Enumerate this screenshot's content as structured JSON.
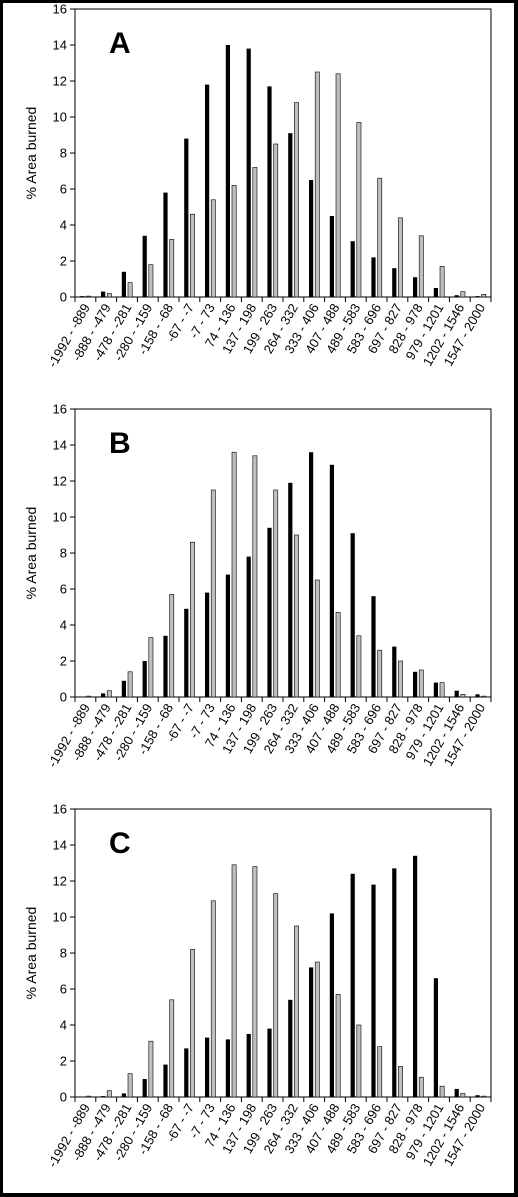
{
  "chart_data": [
    {
      "type": "bar",
      "panel_label": "A",
      "ylabel": "% Area burned",
      "xlabel": "",
      "ylim": [
        0,
        16
      ],
      "yticks": [
        0,
        2,
        4,
        6,
        8,
        10,
        12,
        14,
        16
      ],
      "grid": false,
      "categories": [
        "-1992 - -889",
        "-888 - -479",
        "-478 - -281",
        "-280 - -159",
        "-158 - -68",
        "-67 - -7",
        "-7 - 73",
        "74 - 136",
        "137 - 198",
        "199 - 263",
        "264 - 332",
        "333 - 406",
        "407 - 488",
        "489 - 583",
        "583 - 696",
        "697 - 827",
        "828 - 978",
        "979 - 1201",
        "1202 - 1546",
        "1547 - 2000"
      ],
      "series": [
        {
          "color": "#000000",
          "values": [
            0.05,
            0.3,
            1.4,
            3.4,
            5.8,
            8.8,
            11.8,
            14.0,
            13.8,
            11.7,
            9.1,
            6.5,
            4.5,
            3.1,
            2.2,
            1.6,
            1.1,
            0.5,
            0.1,
            0.05
          ]
        },
        {
          "color": "#bfbfbf",
          "values": [
            0.05,
            0.2,
            0.8,
            1.8,
            3.2,
            4.6,
            5.4,
            6.2,
            7.2,
            8.5,
            10.8,
            12.5,
            12.4,
            9.7,
            6.6,
            4.4,
            3.4,
            1.7,
            0.3,
            0.15
          ]
        }
      ]
    },
    {
      "type": "bar",
      "panel_label": "B",
      "ylabel": "% Area burned",
      "xlabel": "",
      "ylim": [
        0,
        16
      ],
      "yticks": [
        0,
        2,
        4,
        6,
        8,
        10,
        12,
        14,
        16
      ],
      "grid": false,
      "categories": [
        "-1992 - -889",
        "-888 - -479",
        "-478 - -281",
        "-280 - -159",
        "-158 - -68",
        "-67 - -7",
        "-7 - 73",
        "74 - 136",
        "137 - 198",
        "199 - 263",
        "264 - 332",
        "333 - 406",
        "407 - 488",
        "489 - 583",
        "583 - 696",
        "697 - 827",
        "828 - 978",
        "979 - 1201",
        "1202 - 1546",
        "1547 - 2000"
      ],
      "series": [
        {
          "color": "#000000",
          "values": [
            0.02,
            0.2,
            0.9,
            2.0,
            3.4,
            4.9,
            5.8,
            6.8,
            7.8,
            9.4,
            11.9,
            13.6,
            12.9,
            9.1,
            5.6,
            2.8,
            1.4,
            0.8,
            0.35,
            0.15
          ]
        },
        {
          "color": "#bfbfbf",
          "values": [
            0.05,
            0.35,
            1.4,
            3.3,
            5.7,
            8.6,
            11.5,
            13.6,
            13.4,
            11.5,
            9.0,
            6.5,
            4.7,
            3.4,
            2.6,
            2.0,
            1.5,
            0.8,
            0.15,
            0.05
          ]
        }
      ]
    },
    {
      "type": "bar",
      "panel_label": "C",
      "ylabel": "% Area burned",
      "xlabel": "",
      "ylim": [
        0,
        16
      ],
      "yticks": [
        0,
        2,
        4,
        6,
        8,
        10,
        12,
        14,
        16
      ],
      "grid": false,
      "categories": [
        "-1992 - -889",
        "-888 - -479",
        "-478 - -281",
        "-280 - -159",
        "-158 - -68",
        "-67 - -7",
        "-7 - 73",
        "74 - 136",
        "137 - 198",
        "199 - 263",
        "264 - 332",
        "333 - 406",
        "407 - 488",
        "489 - 583",
        "583 - 696",
        "697 - 827",
        "828 - 978",
        "979 - 1201",
        "1202 - 1546",
        "1547 - 2000"
      ],
      "series": [
        {
          "color": "#000000",
          "values": [
            0.02,
            0.05,
            0.2,
            1.0,
            1.8,
            2.7,
            3.3,
            3.2,
            3.5,
            3.8,
            5.4,
            7.2,
            10.2,
            12.4,
            11.8,
            12.7,
            13.4,
            6.6,
            0.45,
            0.1
          ]
        },
        {
          "color": "#bfbfbf",
          "values": [
            0.05,
            0.35,
            1.3,
            3.1,
            5.4,
            8.2,
            10.9,
            12.9,
            12.8,
            11.3,
            9.5,
            7.5,
            5.7,
            4.0,
            2.8,
            1.7,
            1.1,
            0.6,
            0.2,
            0.05
          ]
        }
      ]
    }
  ]
}
